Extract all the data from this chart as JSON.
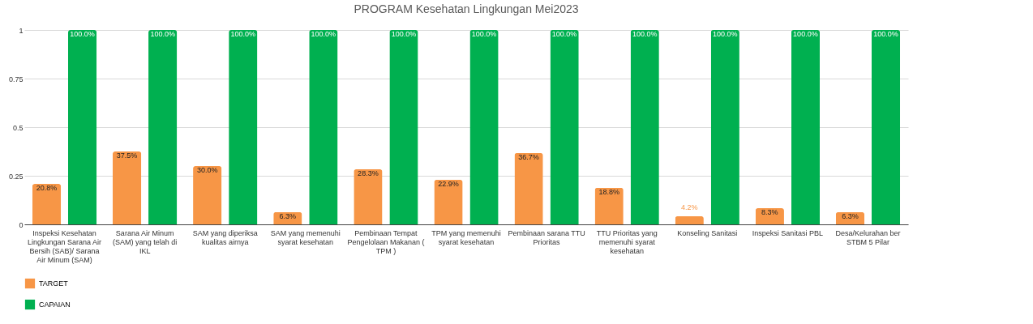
{
  "chart_data": {
    "type": "bar",
    "title": "PROGRAM Kesehatan Lingkungan Mei2023",
    "categories": [
      "Inspeksi Kesehatan Lingkungan Sarana Air Bersih (SAB)/ Sarana Air Minum (SAM)",
      "Sarana Air Minum (SAM) yang telah di IKL",
      "SAM yang diperiksa kualitas airnya",
      "SAM yang memenuhi syarat kesehatan",
      "Pembinaan Tempat Pengelolaan Makanan ( TPM )",
      "TPM yang memenuhi syarat kesehatan",
      "Pembinaan sarana TTU Prioritas",
      "TTU Prioritas yang memenuhi syarat kesehatan",
      "Konseling Sanitasi",
      "Inspeksi Sanitasi PBL",
      "Desa/Kelurahan ber STBM 5 Pilar"
    ],
    "series": [
      {
        "name": "TARGET",
        "color": "#f79646",
        "values": [
          0.208,
          0.375,
          0.3,
          0.063,
          0.283,
          0.229,
          0.367,
          0.188,
          0.042,
          0.083,
          0.063
        ],
        "value_labels": [
          "20.8%",
          "37.5%",
          "30.0%",
          "6.3%",
          "28.3%",
          "22.9%",
          "36.7%",
          "18.8%",
          "4.2%",
          "8.3%",
          "6.3%"
        ]
      },
      {
        "name": "CAPAIAN",
        "color": "#00b050",
        "values": [
          1,
          1,
          1,
          1,
          1,
          1,
          1,
          1,
          1,
          1,
          1
        ],
        "value_labels": [
          "100.0%",
          "100.0%",
          "100.0%",
          "100.0%",
          "100.0%",
          "100.0%",
          "100.0%",
          "100.0%",
          "100.0%",
          "100.0%",
          "100.0%"
        ]
      }
    ],
    "ylim": [
      0,
      1
    ],
    "yticks": [
      0,
      0.25,
      0.5,
      0.75,
      1
    ],
    "grid": "y",
    "legend": "bottom"
  }
}
